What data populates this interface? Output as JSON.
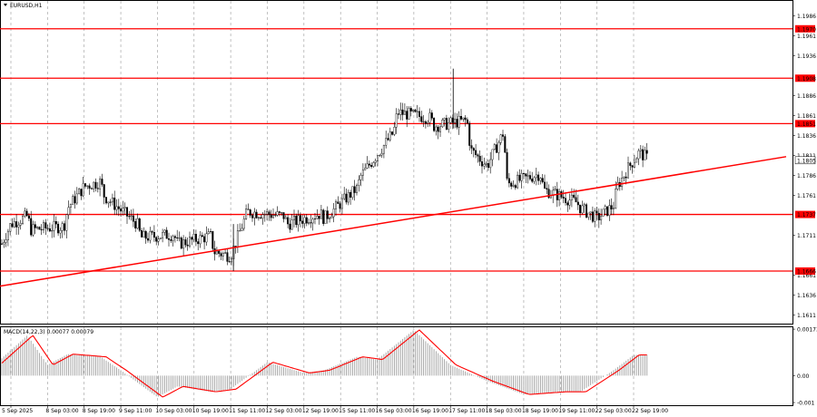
{
  "symbol_label": "EURUSD,H1",
  "macd_label": "MACD(14,22,3) 0.00077 0.00079",
  "colors": {
    "background": "#ffffff",
    "candle": "#000000",
    "level_line": "#ff0000",
    "level_tag_bg": "#ff0000",
    "level_tag_text": "#ffffff",
    "current_tag_bg": "#ffffff",
    "grid": "#9a9a9a",
    "histogram": "#a0a0a0",
    "signal_line": "#ff0000"
  },
  "price_axis": {
    "labels": [
      "1.1986",
      "1.1961",
      "1.1936",
      "1.1886",
      "1.1861",
      "1.1836",
      "1.1811",
      "1.1786",
      "1.1761",
      "1.1711",
      "1.1661",
      "1.1636",
      "1.1611"
    ]
  },
  "levels": [
    "1.1970",
    "1.1908",
    "1.1851",
    "1.1737",
    "1.1666"
  ],
  "current_price": "1.1805",
  "macd_axis": {
    "labels": [
      "0.00173",
      "0.00",
      "-0.001"
    ]
  },
  "time_axis": {
    "labels": [
      "5 Sep 2025",
      "8 Sep 03:00",
      "8 Sep 19:00",
      "9 Sep 11:00",
      "10 Sep 03:00",
      "10 Sep 19:00",
      "11 Sep 11:00",
      "12 Sep 03:00",
      "12 Sep 19:00",
      "15 Sep 11:00",
      "16 Sep 03:00",
      "16 Sep 19:00",
      "17 Sep 11:00",
      "18 Sep 03:00",
      "18 Sep 19:00",
      "19 Sep 11:00",
      "22 Sep 03:00",
      "22 Sep 19:00"
    ]
  },
  "chart_data": {
    "type": "candlestick",
    "symbol": "EURUSD",
    "timeframe": "H1",
    "close_path": [
      [
        "5 Sep 2025",
        1.168
      ],
      [
        "5 Sep 2025",
        1.1725
      ],
      [
        "5 Sep 2025",
        1.1735
      ],
      [
        "8 Sep 03:00",
        1.1718
      ],
      [
        "8 Sep 03:00",
        1.1722
      ],
      [
        "8 Sep 19:00",
        1.1745
      ],
      [
        "8 Sep 19:00",
        1.1772
      ],
      [
        "8 Sep 19:00",
        1.1778
      ],
      [
        "9 Sep 11:00",
        1.176
      ],
      [
        "9 Sep 11:00",
        1.1725
      ],
      [
        "10 Sep 03:00",
        1.1708
      ],
      [
        "10 Sep 03:00",
        1.1712
      ],
      [
        "10 Sep 19:00",
        1.17
      ],
      [
        "10 Sep 19:00",
        1.171
      ],
      [
        "11 Sep 11:00",
        1.169
      ],
      [
        "11 Sep 11:00",
        1.1685
      ],
      [
        "11 Sep 11:00",
        1.174
      ],
      [
        "12 Sep 03:00",
        1.174
      ],
      [
        "12 Sep 03:00",
        1.1735
      ],
      [
        "12 Sep 19:00",
        1.1725
      ],
      [
        "12 Sep 19:00",
        1.1738
      ],
      [
        "15 Sep 11:00",
        1.1732
      ],
      [
        "15 Sep 11:00",
        1.177
      ],
      [
        "16 Sep 03:00",
        1.1785
      ],
      [
        "16 Sep 03:00",
        1.184
      ],
      [
        "16 Sep 19:00",
        1.1865
      ],
      [
        "16 Sep 19:00",
        1.1858
      ],
      [
        "17 Sep 11:00",
        1.1848
      ],
      [
        "17 Sep 11:00",
        1.1855
      ],
      [
        "18 Sep 03:00",
        1.1818
      ],
      [
        "18 Sep 03:00",
        1.1798
      ],
      [
        "18 Sep 03:00",
        1.184
      ],
      [
        "18 Sep 19:00",
        1.1775
      ],
      [
        "18 Sep 19:00",
        1.1788
      ],
      [
        "19 Sep 11:00",
        1.1768
      ],
      [
        "19 Sep 11:00",
        1.1752
      ],
      [
        "22 Sep 03:00",
        1.1745
      ],
      [
        "22 Sep 03:00",
        1.1732
      ],
      [
        "22 Sep 03:00",
        1.1748
      ],
      [
        "22 Sep 19:00",
        1.1772
      ],
      [
        "22 Sep 19:00",
        1.1795
      ],
      [
        "22 Sep 19:00",
        1.1815
      ],
      [
        "22 Sep 19:00",
        1.1805
      ]
    ],
    "spikes": [
      {
        "x": "17 Sep 11:00",
        "high": 1.192,
        "low": 1.1845
      },
      {
        "x": "11 Sep 11:00",
        "high": 1.1725,
        "low": 1.1666
      }
    ],
    "horizontal_levels": [
      1.197,
      1.1908,
      1.1851,
      1.1737,
      1.1666
    ],
    "trendline": {
      "start": [
        "5 Sep 2025",
        1.1647
      ],
      "end": [
        "22 Sep 19:00",
        1.1778
      ]
    },
    "current_price": 1.1805,
    "ylim": [
      1.16,
      1.2005
    ],
    "macd": {
      "name": "MACD(14,22,3)",
      "ylim": [
        -0.0011,
        0.0018
      ],
      "histogram_path": [
        [
          "5 Sep 2025",
          0.0004
        ],
        [
          "5 Sep 2025",
          0.0015
        ],
        [
          "8 Sep 03:00",
          0.0004
        ],
        [
          "8 Sep 19:00",
          0.0008
        ],
        [
          "8 Sep 19:00",
          0.0007
        ],
        [
          "9 Sep 11:00",
          0.0002
        ],
        [
          "10 Sep 03:00",
          -0.0008
        ],
        [
          "10 Sep 19:00",
          -0.0004
        ],
        [
          "10 Sep 19:00",
          -0.0006
        ],
        [
          "11 Sep 11:00",
          -0.0005
        ],
        [
          "12 Sep 03:00",
          0.0005
        ],
        [
          "12 Sep 19:00",
          0.0001
        ],
        [
          "15 Sep 11:00",
          0.0002
        ],
        [
          "15 Sep 11:00",
          0.0007
        ],
        [
          "16 Sep 03:00",
          0.0006
        ],
        [
          "16 Sep 19:00",
          0.0017
        ],
        [
          "17 Sep 11:00",
          0.0004
        ],
        [
          "18 Sep 03:00",
          -0.0002
        ],
        [
          "18 Sep 19:00",
          -0.0007
        ],
        [
          "19 Sep 11:00",
          -0.0006
        ],
        [
          "22 Sep 03:00",
          -0.0006
        ],
        [
          "22 Sep 03:00",
          0.0002
        ],
        [
          "22 Sep 19:00",
          0.00077
        ]
      ],
      "last_histogram": 0.00077,
      "last_signal": 0.00079
    }
  }
}
